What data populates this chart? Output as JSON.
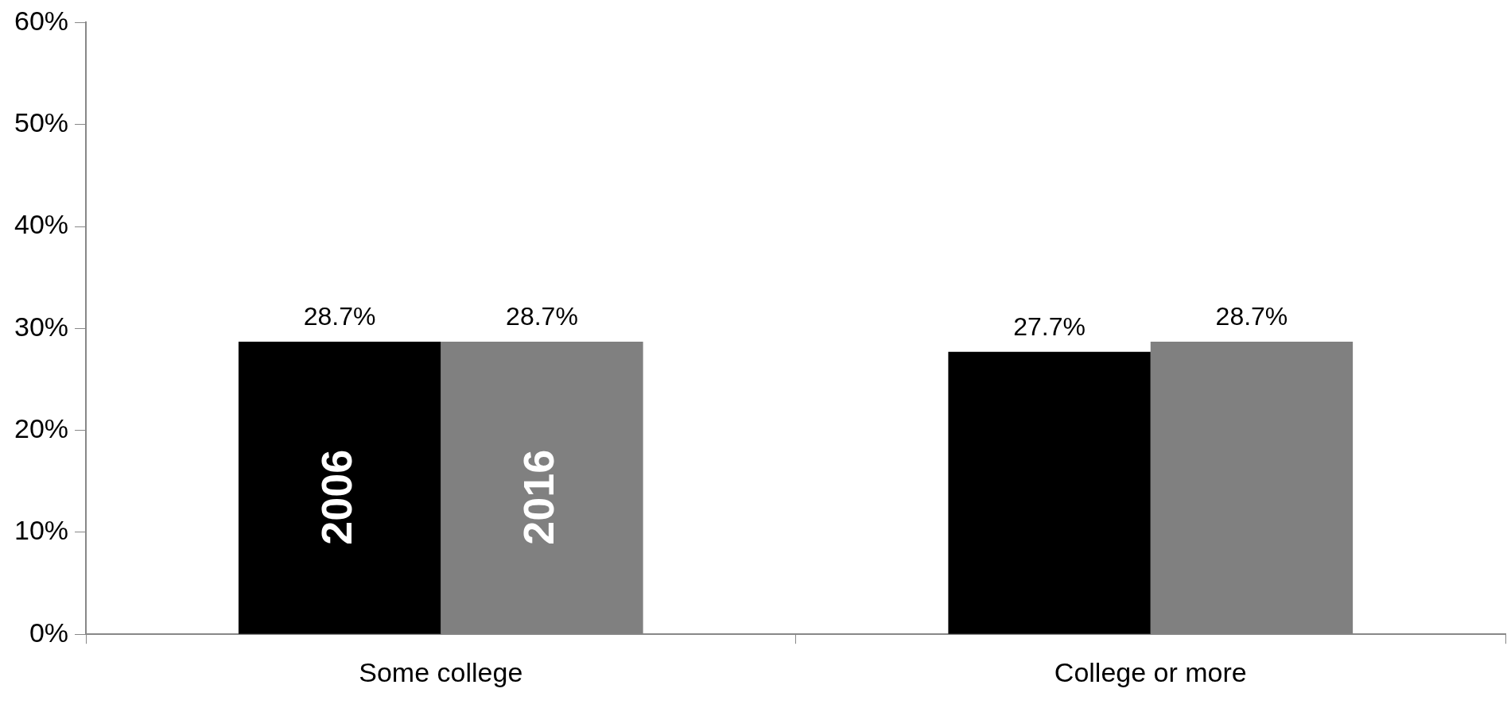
{
  "chart_data": {
    "type": "bar",
    "categories": [
      "Some college",
      "College or more"
    ],
    "series": [
      {
        "name": "2006",
        "color": "#000000",
        "values": [
          28.7,
          27.7
        ],
        "value_labels": [
          "28.7%",
          "27.7%"
        ]
      },
      {
        "name": "2016",
        "color": "#808080",
        "values": [
          28.7,
          28.7
        ],
        "value_labels": [
          "28.7%",
          "28.7%"
        ]
      }
    ],
    "ylim": [
      0,
      60
    ],
    "yticks": [
      {
        "value": 0,
        "label": "0%"
      },
      {
        "value": 10,
        "label": "10%"
      },
      {
        "value": 20,
        "label": "20%"
      },
      {
        "value": 30,
        "label": "30%"
      },
      {
        "value": 40,
        "label": "40%"
      },
      {
        "value": 50,
        "label": "50%"
      },
      {
        "value": 60,
        "label": "60%"
      }
    ],
    "grid": false,
    "legend": false
  }
}
